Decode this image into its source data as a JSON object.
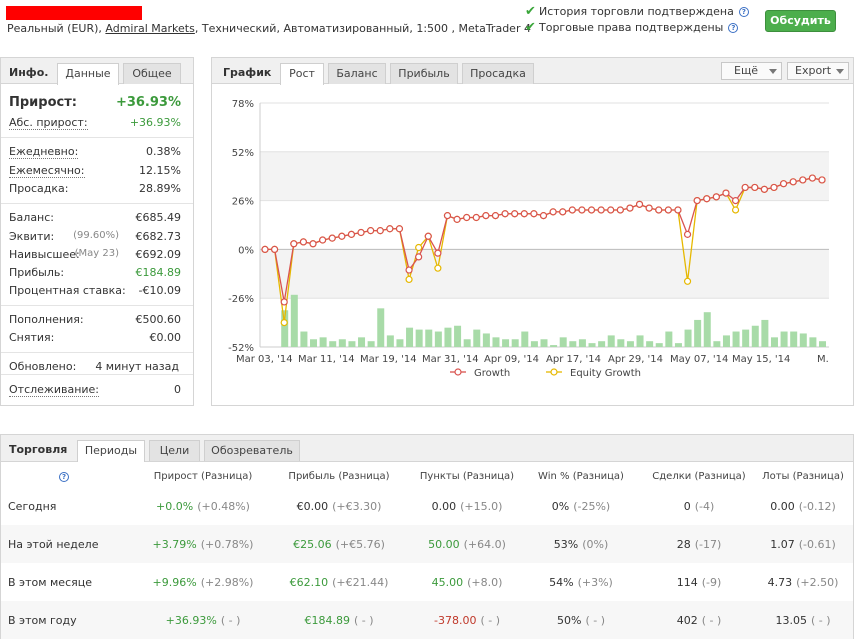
{
  "header": {
    "account_line_prefix": "Реальный (EUR),",
    "broker": "Admiral Markets",
    "account_line_suffix": ", Технический, Автоматизированный, 1:500 , MetaTrader 4",
    "verifications": [
      "История торговли подтверждена",
      "Торговые права подтверждены"
    ],
    "discuss_label": "Обсудить"
  },
  "info": {
    "title": "Инфо.",
    "tabs": [
      "Данные",
      "Общее"
    ],
    "rows": [
      {
        "label": "Прирост:",
        "value": "+36.93%",
        "bold": true
      },
      {
        "label": "Абс. прирост:",
        "value": "+36.93%"
      },
      {
        "label": "Ежедневно:",
        "value": "0.38%"
      },
      {
        "label": "Ежемесячно:",
        "value": "12.15%"
      },
      {
        "label": "Просадка:",
        "value": "28.89%"
      },
      {
        "label": "Баланс:",
        "value": "€685.49"
      },
      {
        "label": "Эквити:",
        "value": "€682.73",
        "note": "(99.60%)"
      },
      {
        "label": "Наивысшее:",
        "value": "€692.09",
        "note": "(May 23)"
      },
      {
        "label": "Прибыль:",
        "value": "€184.89"
      },
      {
        "label": "Процентная ставка:",
        "value": "-€10.09"
      },
      {
        "label": "Пополнения:",
        "value": "€500.60"
      },
      {
        "label": "Снятия:",
        "value": "€0.00"
      },
      {
        "label": "Обновлено:",
        "value": "4 минут назад"
      },
      {
        "label": "Отслеживание:",
        "value": "0"
      }
    ]
  },
  "chart_panel": {
    "title": "График",
    "tabs": [
      "Рост",
      "Баланс",
      "Прибыль",
      "Просадка"
    ],
    "more_label": "Ещё",
    "export_label": "Export"
  },
  "chart_data": {
    "type": "line",
    "y_ticks": [
      "78%",
      "52%",
      "26%",
      "0%",
      "-26%",
      "-52%"
    ],
    "ylim": [
      -52,
      78
    ],
    "x_ticks": [
      "Mar 03, '14",
      "Mar 11, '14",
      "Mar 19, '14",
      "Mar 31, '14",
      "Apr 09, '14",
      "Apr 17, '14",
      "Apr 29, '14",
      "May 07, '14",
      "May 15, '14",
      "M."
    ],
    "series": [
      {
        "name": "Growth",
        "color": "#d9534f",
        "values": [
          0,
          0,
          -28,
          3,
          4,
          3,
          5,
          6,
          7,
          8,
          9,
          10,
          10,
          11,
          11,
          -11,
          -4,
          7,
          -2,
          18,
          16,
          17,
          17,
          18,
          18,
          19,
          19,
          19,
          19,
          18,
          20,
          20,
          21,
          21,
          21,
          21,
          21,
          21,
          22,
          24,
          22,
          21,
          21,
          21,
          8,
          26,
          27,
          28,
          30,
          26,
          33,
          33,
          32,
          33,
          35,
          36,
          37,
          38,
          37
        ]
      },
      {
        "name": "Equity Growth",
        "color": "#e6b800",
        "values": [
          0,
          0,
          -39,
          3,
          4,
          3,
          5,
          6,
          7,
          8,
          9,
          10,
          10,
          11,
          11,
          -16,
          1,
          7,
          -10,
          18,
          16,
          17,
          17,
          18,
          18,
          19,
          19,
          19,
          19,
          18,
          20,
          20,
          21,
          21,
          21,
          21,
          21,
          21,
          22,
          24,
          22,
          21,
          21,
          21,
          -17,
          26,
          27,
          28,
          30,
          21,
          33,
          33,
          32,
          33,
          35,
          36,
          37,
          38,
          37
        ]
      }
    ],
    "bar_values": [
      0,
      0,
      19,
      27,
      8,
      4,
      5,
      3,
      4,
      3,
      5,
      3,
      20,
      6,
      4,
      10,
      9,
      9,
      8,
      10,
      11,
      4,
      9,
      7,
      5,
      4,
      4,
      8,
      3,
      4,
      1,
      5,
      3,
      4,
      2,
      3,
      6,
      4,
      3,
      6,
      3,
      2,
      8,
      2,
      9,
      14,
      18,
      3,
      6,
      8,
      9,
      11,
      14,
      5,
      8,
      8,
      7,
      5,
      3
    ],
    "bar_color": "#a8dba8",
    "legend_position": "bottom"
  },
  "trading": {
    "title": "Торговля",
    "tabs": [
      "Периоды",
      "Цели",
      "Обозреватель"
    ],
    "columns": [
      "Прирост (Разница)",
      "Прибыль (Разница)",
      "Пункты (Разница)",
      "Win % (Разница)",
      "Сделки (Разница)",
      "Лоты (Разница)"
    ],
    "rows": [
      {
        "label": "Сегодня",
        "cells": [
          [
            "+0.0%",
            "(+0.48%)"
          ],
          [
            "€0.00",
            "(+€3.30)"
          ],
          [
            "0.00",
            "(+15.0)"
          ],
          [
            "0%",
            "(-25%)"
          ],
          [
            "0",
            "(-4)"
          ],
          [
            "0.00",
            "(-0.12)"
          ]
        ]
      },
      {
        "label": "На этой неделе",
        "cells": [
          [
            "+3.79%",
            "(+0.78%)"
          ],
          [
            "€25.06",
            "(+€5.76)"
          ],
          [
            "50.00",
            "(+64.0)"
          ],
          [
            "53%",
            "(0%)"
          ],
          [
            "28",
            "(-17)"
          ],
          [
            "1.07",
            "(-0.61)"
          ]
        ]
      },
      {
        "label": "В этом месяце",
        "cells": [
          [
            "+9.96%",
            "(+2.98%)"
          ],
          [
            "€62.10",
            "(+€21.44)"
          ],
          [
            "45.00",
            "(+8.0)"
          ],
          [
            "54%",
            "(+3%)"
          ],
          [
            "114",
            "(-9)"
          ],
          [
            "4.73",
            "(+2.50)"
          ]
        ]
      },
      {
        "label": "В этом году",
        "cells": [
          [
            "+36.93%",
            "( - )"
          ],
          [
            "€184.89",
            "( - )"
          ],
          [
            "-378.00",
            "( - )"
          ],
          [
            "50%",
            "( - )"
          ],
          [
            "402",
            "( - )"
          ],
          [
            "13.05",
            "( - )"
          ]
        ]
      }
    ]
  }
}
